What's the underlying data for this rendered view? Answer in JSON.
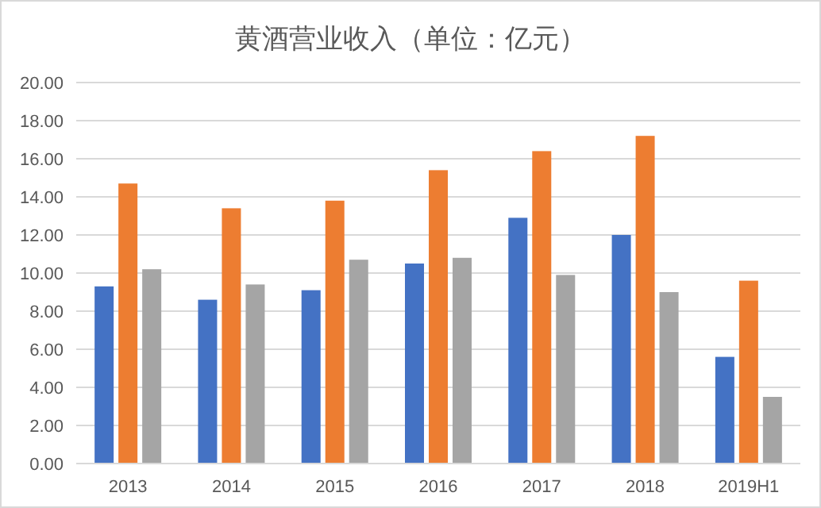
{
  "chart_data": {
    "type": "bar",
    "title": "黄酒营业收入（单位：亿元）",
    "categories": [
      "2013",
      "2014",
      "2015",
      "2016",
      "2017",
      "2018",
      "2019H1"
    ],
    "series": [
      {
        "color": "#4472c4",
        "values": [
          9.3,
          8.6,
          9.1,
          10.5,
          12.9,
          12.0,
          5.6
        ]
      },
      {
        "color": "#ed7d31",
        "values": [
          14.7,
          13.4,
          13.8,
          15.4,
          16.4,
          17.2,
          9.6
        ]
      },
      {
        "color": "#a5a5a5",
        "values": [
          10.2,
          9.4,
          10.7,
          10.8,
          9.9,
          9.0,
          3.5
        ]
      }
    ],
    "ylim": [
      0,
      20
    ],
    "yticks": [
      {
        "value": 0,
        "label": "0.00"
      },
      {
        "value": 2,
        "label": "2.00"
      },
      {
        "value": 4,
        "label": "4.00"
      },
      {
        "value": 6,
        "label": "6.00"
      },
      {
        "value": 8,
        "label": "8.00"
      },
      {
        "value": 10,
        "label": "10.00"
      },
      {
        "value": 12,
        "label": "12.00"
      },
      {
        "value": 14,
        "label": "14.00"
      },
      {
        "value": 16,
        "label": "16.00"
      },
      {
        "value": 18,
        "label": "18.00"
      },
      {
        "value": 20,
        "label": "20.00"
      }
    ],
    "grid": "y"
  }
}
